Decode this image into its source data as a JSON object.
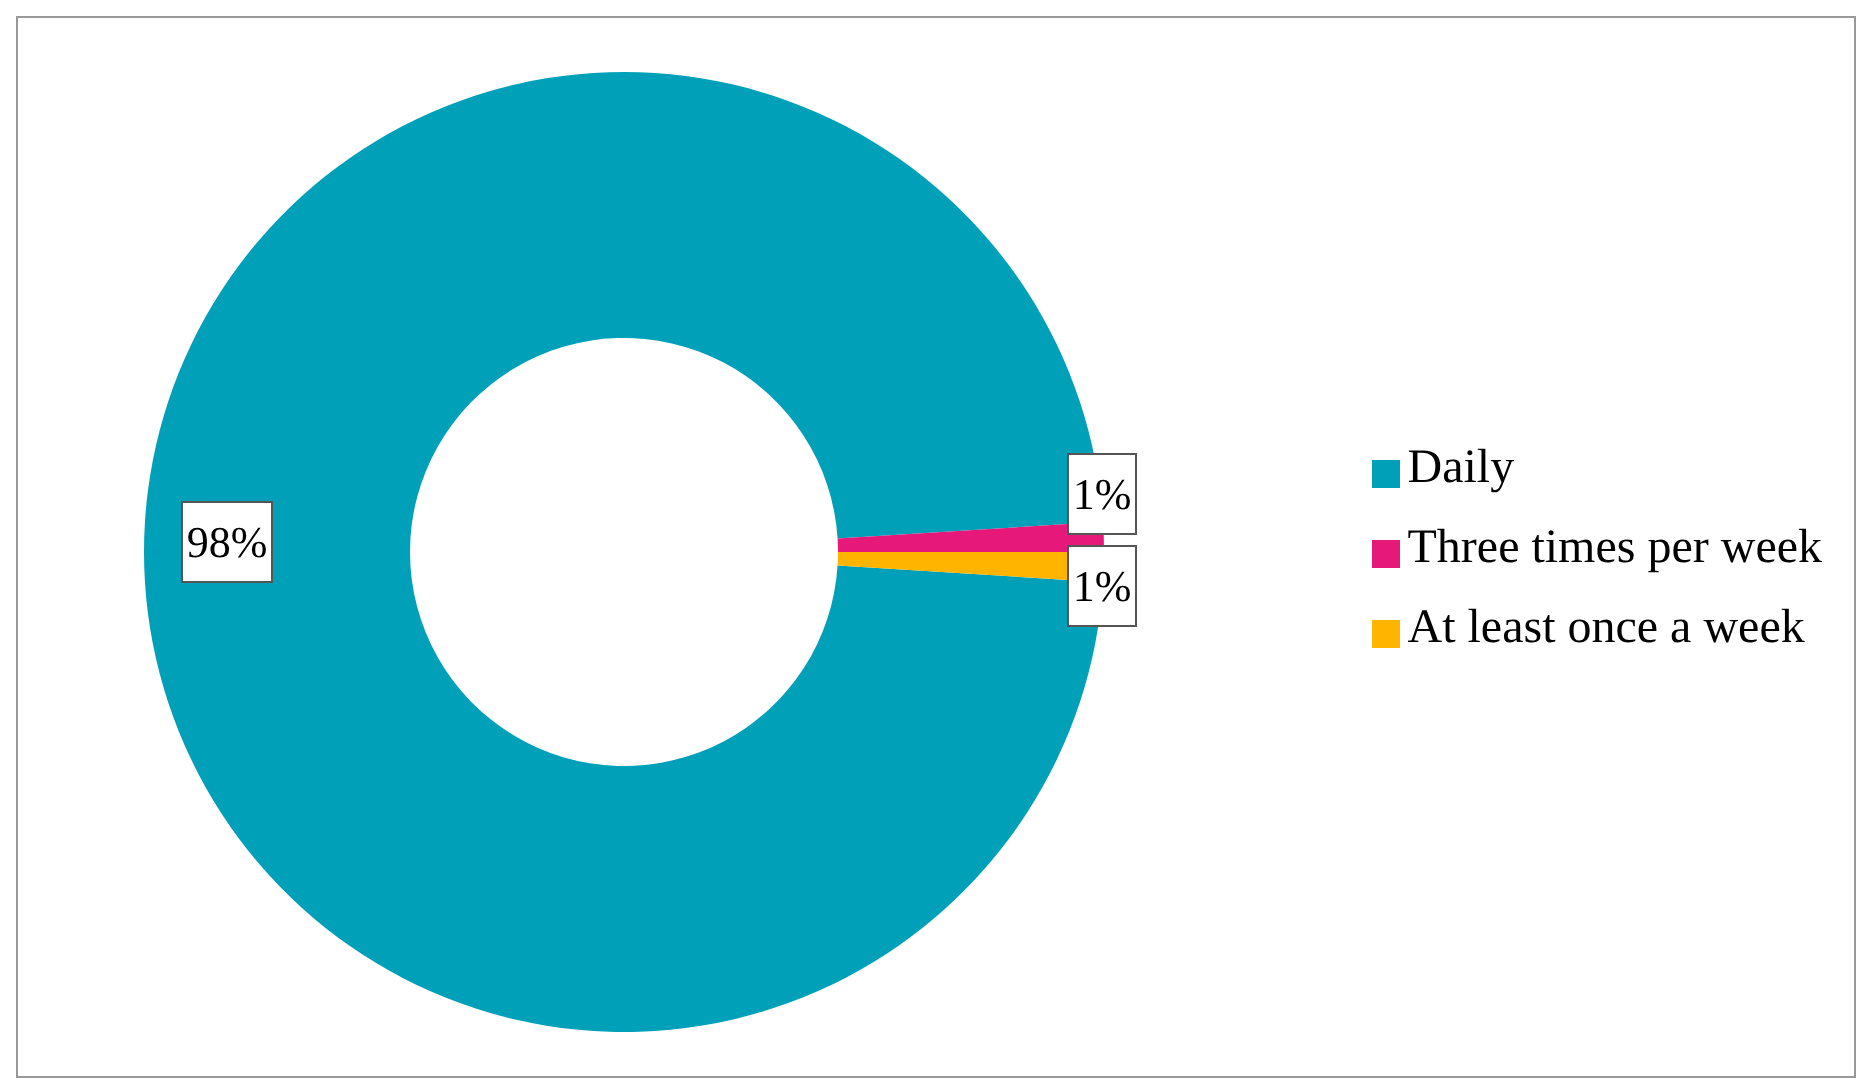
{
  "chart_data": {
    "type": "donut",
    "categories": [
      "Daily",
      "Three times per week",
      "At least once a week"
    ],
    "values": [
      98,
      1,
      1
    ],
    "colors": [
      "#00a0b8",
      "#e6197a",
      "#ffb400"
    ],
    "value_labels": [
      "98%",
      "1%",
      "1%"
    ],
    "legend": "right"
  }
}
